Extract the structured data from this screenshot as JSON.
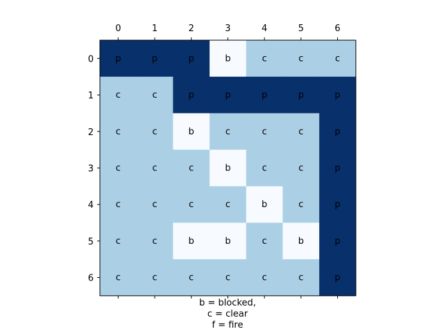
{
  "chart_data": {
    "type": "heatmap",
    "title": "",
    "xlabel": "",
    "ylabel": "",
    "x_ticks_top": [
      "0",
      "1",
      "2",
      "3",
      "4",
      "5",
      "6"
    ],
    "y_ticks": [
      "0",
      "1",
      "2",
      "3",
      "4",
      "5",
      "6"
    ],
    "x_ticks_bottom_marks_only": true,
    "grid": false,
    "cells": [
      [
        "p",
        "p",
        "p",
        "b",
        "c",
        "c",
        "c"
      ],
      [
        "c",
        "c",
        "p",
        "p",
        "p",
        "p",
        "p"
      ],
      [
        "c",
        "c",
        "b",
        "c",
        "c",
        "c",
        "p"
      ],
      [
        "c",
        "c",
        "c",
        "b",
        "c",
        "c",
        "p"
      ],
      [
        "c",
        "c",
        "c",
        "c",
        "b",
        "c",
        "p"
      ],
      [
        "c",
        "c",
        "b",
        "b",
        "c",
        "b",
        "p"
      ],
      [
        "c",
        "c",
        "c",
        "c",
        "c",
        "c",
        "p"
      ]
    ],
    "colors": {
      "p": "#08306b",
      "c": "#abcfe5",
      "b": "#f7fbff"
    },
    "legend_lines": [
      "b = blocked,",
      "c = clear",
      "f = fire"
    ]
  }
}
